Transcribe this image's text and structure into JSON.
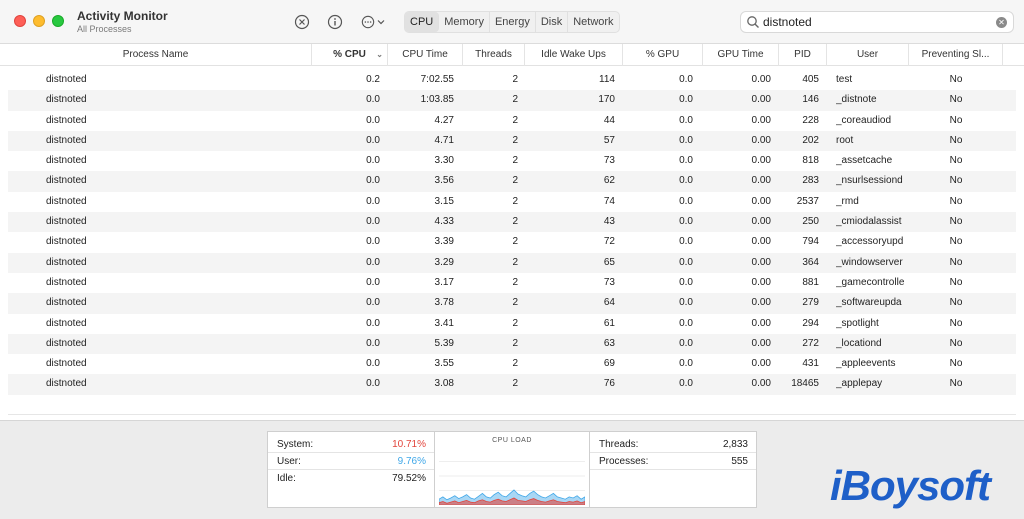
{
  "window": {
    "title": "Activity Monitor",
    "subtitle": "All Processes"
  },
  "toolbar": {
    "stop_icon": "x-circle-icon",
    "info_icon": "info-circle-icon",
    "more_icon": "ellipsis-circle-icon",
    "tabs": [
      "CPU",
      "Memory",
      "Energy",
      "Disk",
      "Network"
    ],
    "active_tab": "CPU"
  },
  "search": {
    "value": "distnoted",
    "placeholder": "Search"
  },
  "columns": [
    "Process Name",
    "% CPU",
    "CPU Time",
    "Threads",
    "Idle Wake Ups",
    "% GPU",
    "GPU Time",
    "PID",
    "User",
    "Preventing Sl..."
  ],
  "sorted_column": "% CPU",
  "processes": [
    {
      "name": "distnoted",
      "cpu": "0.2",
      "cpu_time": "7:02.55",
      "threads": "2",
      "idle_wake_ups": "114",
      "gpu": "0.0",
      "gpu_time": "0.00",
      "pid": "405",
      "user": "test",
      "preventing_sleep": "No"
    },
    {
      "name": "distnoted",
      "cpu": "0.0",
      "cpu_time": "1:03.85",
      "threads": "2",
      "idle_wake_ups": "170",
      "gpu": "0.0",
      "gpu_time": "0.00",
      "pid": "146",
      "user": "_distnote",
      "preventing_sleep": "No"
    },
    {
      "name": "distnoted",
      "cpu": "0.0",
      "cpu_time": "4.27",
      "threads": "2",
      "idle_wake_ups": "44",
      "gpu": "0.0",
      "gpu_time": "0.00",
      "pid": "228",
      "user": "_coreaudiod",
      "preventing_sleep": "No"
    },
    {
      "name": "distnoted",
      "cpu": "0.0",
      "cpu_time": "4.71",
      "threads": "2",
      "idle_wake_ups": "57",
      "gpu": "0.0",
      "gpu_time": "0.00",
      "pid": "202",
      "user": "root",
      "preventing_sleep": "No"
    },
    {
      "name": "distnoted",
      "cpu": "0.0",
      "cpu_time": "3.30",
      "threads": "2",
      "idle_wake_ups": "73",
      "gpu": "0.0",
      "gpu_time": "0.00",
      "pid": "818",
      "user": "_assetcache",
      "preventing_sleep": "No"
    },
    {
      "name": "distnoted",
      "cpu": "0.0",
      "cpu_time": "3.56",
      "threads": "2",
      "idle_wake_ups": "62",
      "gpu": "0.0",
      "gpu_time": "0.00",
      "pid": "283",
      "user": "_nsurlsessiond",
      "preventing_sleep": "No"
    },
    {
      "name": "distnoted",
      "cpu": "0.0",
      "cpu_time": "3.15",
      "threads": "2",
      "idle_wake_ups": "74",
      "gpu": "0.0",
      "gpu_time": "0.00",
      "pid": "2537",
      "user": "_rmd",
      "preventing_sleep": "No"
    },
    {
      "name": "distnoted",
      "cpu": "0.0",
      "cpu_time": "4.33",
      "threads": "2",
      "idle_wake_ups": "43",
      "gpu": "0.0",
      "gpu_time": "0.00",
      "pid": "250",
      "user": "_cmiodalassist",
      "preventing_sleep": "No"
    },
    {
      "name": "distnoted",
      "cpu": "0.0",
      "cpu_time": "3.39",
      "threads": "2",
      "idle_wake_ups": "72",
      "gpu": "0.0",
      "gpu_time": "0.00",
      "pid": "794",
      "user": "_accessoryupd",
      "preventing_sleep": "No"
    },
    {
      "name": "distnoted",
      "cpu": "0.0",
      "cpu_time": "3.29",
      "threads": "2",
      "idle_wake_ups": "65",
      "gpu": "0.0",
      "gpu_time": "0.00",
      "pid": "364",
      "user": "_windowserver",
      "preventing_sleep": "No"
    },
    {
      "name": "distnoted",
      "cpu": "0.0",
      "cpu_time": "3.17",
      "threads": "2",
      "idle_wake_ups": "73",
      "gpu": "0.0",
      "gpu_time": "0.00",
      "pid": "881",
      "user": "_gamecontrolle",
      "preventing_sleep": "No"
    },
    {
      "name": "distnoted",
      "cpu": "0.0",
      "cpu_time": "3.78",
      "threads": "2",
      "idle_wake_ups": "64",
      "gpu": "0.0",
      "gpu_time": "0.00",
      "pid": "279",
      "user": "_softwareupda",
      "preventing_sleep": "No"
    },
    {
      "name": "distnoted",
      "cpu": "0.0",
      "cpu_time": "3.41",
      "threads": "2",
      "idle_wake_ups": "61",
      "gpu": "0.0",
      "gpu_time": "0.00",
      "pid": "294",
      "user": "_spotlight",
      "preventing_sleep": "No"
    },
    {
      "name": "distnoted",
      "cpu": "0.0",
      "cpu_time": "5.39",
      "threads": "2",
      "idle_wake_ups": "63",
      "gpu": "0.0",
      "gpu_time": "0.00",
      "pid": "272",
      "user": "_locationd",
      "preventing_sleep": "No"
    },
    {
      "name": "distnoted",
      "cpu": "0.0",
      "cpu_time": "3.55",
      "threads": "2",
      "idle_wake_ups": "69",
      "gpu": "0.0",
      "gpu_time": "0.00",
      "pid": "431",
      "user": "_appleevents",
      "preventing_sleep": "No"
    },
    {
      "name": "distnoted",
      "cpu": "0.0",
      "cpu_time": "3.08",
      "threads": "2",
      "idle_wake_ups": "76",
      "gpu": "0.0",
      "gpu_time": "0.00",
      "pid": "18465",
      "user": "_applepay",
      "preventing_sleep": "No"
    }
  ],
  "stats": {
    "system_label": "System:",
    "system_value": "10.71%",
    "user_label": "User:",
    "user_value": "9.76%",
    "idle_label": "Idle:",
    "idle_value": "79.52%",
    "cpu_load_title": "CPU LOAD",
    "threads_label": "Threads:",
    "threads_value": "2,833",
    "processes_label": "Processes:",
    "processes_value": "555"
  },
  "cpu_load_graph": {
    "system": [
      4,
      6,
      3,
      5,
      7,
      4,
      6,
      8,
      5,
      4,
      7,
      9,
      6,
      5,
      8,
      10,
      7,
      6,
      9,
      12,
      8,
      7,
      6,
      9,
      11,
      8,
      6,
      5,
      7,
      9,
      6,
      5,
      4,
      6,
      5,
      7,
      4,
      6
    ],
    "user": [
      10,
      14,
      9,
      12,
      16,
      11,
      14,
      18,
      12,
      10,
      15,
      20,
      14,
      12,
      18,
      22,
      16,
      14,
      20,
      26,
      19,
      16,
      14,
      20,
      24,
      18,
      14,
      12,
      16,
      20,
      14,
      12,
      10,
      14,
      12,
      16,
      10,
      14
    ]
  },
  "colors": {
    "system": "#e2453c",
    "user": "#3fa7e8",
    "brand": "#1e5fc8"
  },
  "watermark": "iBoysoft"
}
